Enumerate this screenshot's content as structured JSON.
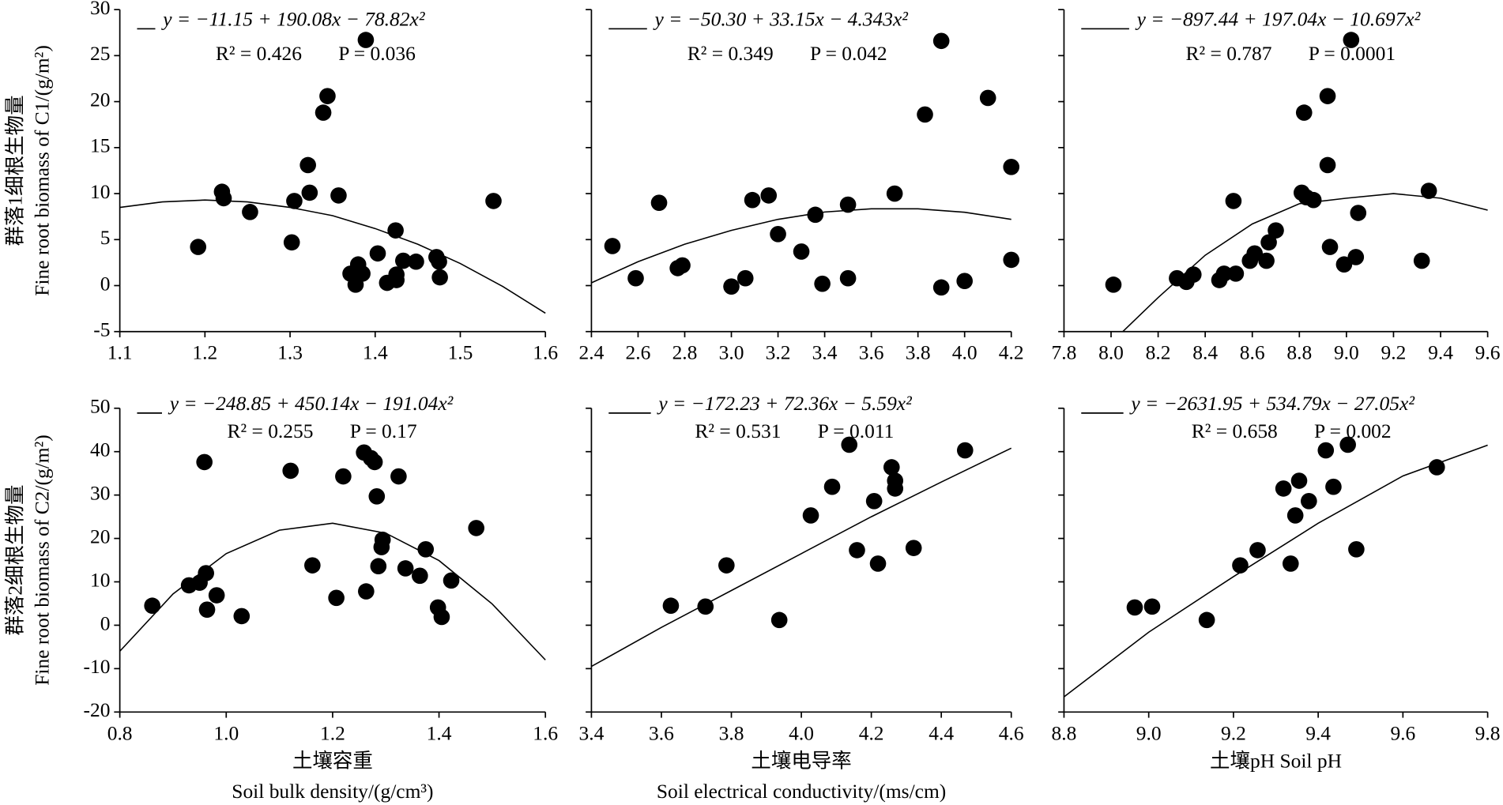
{
  "chart_data": [
    {
      "type": "scatter",
      "equation": "y = −11.15 + 190.08x − 78.82x²",
      "r2": "R² = 0.426",
      "p": "P = 0.036",
      "ylabel": [
        "群落1细根生物量",
        "Fine root biomass of C1/(g/m²)"
      ],
      "xlim": [
        1.1,
        1.6
      ],
      "xticks": [
        1.1,
        1.2,
        1.3,
        1.4,
        1.5,
        1.6
      ],
      "ylim": [
        -5,
        30
      ],
      "yticks": [
        -5,
        0,
        5,
        10,
        15,
        20,
        25,
        30
      ],
      "x": [
        1.192,
        1.22,
        1.222,
        1.253,
        1.302,
        1.305,
        1.321,
        1.323,
        1.339,
        1.344,
        1.357,
        1.371,
        1.377,
        1.38,
        1.385,
        1.389,
        1.403,
        1.414,
        1.424,
        1.425,
        1.425,
        1.433,
        1.448,
        1.472,
        1.475,
        1.476,
        1.539
      ],
      "values": [
        4.2,
        10.2,
        9.5,
        8.0,
        4.7,
        9.2,
        13.1,
        10.1,
        18.8,
        20.6,
        9.8,
        1.3,
        0.1,
        2.3,
        1.3,
        26.7,
        3.5,
        0.3,
        6.0,
        1.2,
        0.6,
        2.7,
        2.6,
        3.1,
        2.6,
        0.9,
        9.2
      ],
      "fit_x": [
        1.1,
        1.15,
        1.2,
        1.25,
        1.3,
        1.35,
        1.4,
        1.45,
        1.5,
        1.55,
        1.6
      ],
      "fit_values": [
        8.5,
        9.1,
        9.3,
        9.1,
        8.5,
        7.6,
        6.2,
        4.5,
        2.4,
        -0.1,
        -3.0
      ]
    },
    {
      "type": "scatter",
      "equation": "y = −50.30 + 33.15x − 4.343x²",
      "r2": "R² = 0.349",
      "p": "P = 0.042",
      "xlim": [
        2.4,
        4.2
      ],
      "xticks": [
        2.4,
        2.6,
        2.8,
        {
          "value": 3,
          "label": "3.0"
        },
        3.2,
        3.4,
        3.6,
        3.8,
        {
          "value": 4,
          "label": "4.0"
        },
        4.2
      ],
      "ylim": [
        -5,
        30
      ],
      "yticks": [
        -5,
        0,
        5,
        10,
        15,
        20,
        25,
        30
      ],
      "x": [
        2.49,
        2.59,
        2.69,
        2.77,
        2.79,
        3.0,
        3.06,
        3.09,
        3.16,
        3.2,
        3.3,
        3.36,
        3.39,
        3.5,
        3.5,
        3.7,
        3.83,
        3.9,
        3.9,
        4.0,
        4.1,
        4.2,
        4.2
      ],
      "values": [
        4.3,
        0.8,
        9.0,
        1.9,
        2.2,
        -0.1,
        0.8,
        9.3,
        9.8,
        5.6,
        3.7,
        7.7,
        0.2,
        0.8,
        8.8,
        10.0,
        18.6,
        26.6,
        -0.2,
        0.5,
        20.4,
        12.9,
        2.8
      ],
      "fit_x": [
        2.4,
        2.6,
        2.8,
        3.0,
        3.2,
        3.4,
        3.6,
        3.8,
        4.0,
        4.2
      ],
      "fit_values": [
        0.3,
        2.6,
        4.5,
        6.0,
        7.2,
        8.0,
        8.35,
        8.35,
        7.97,
        7.2
      ]
    },
    {
      "type": "scatter",
      "equation": "y = −897.44 + 197.04x −  10.697x²",
      "r2": "R² = 0.787",
      "p": "P = 0.0001",
      "xlim": [
        7.8,
        9.6
      ],
      "xticks": [
        7.8,
        {
          "value": 8,
          "label": "8.0"
        },
        8.2,
        8.4,
        8.6,
        8.8,
        {
          "value": 9,
          "label": "9.0"
        },
        9.2,
        9.4,
        9.6
      ],
      "ylim": [
        -5,
        30
      ],
      "yticks": [
        -5,
        0,
        5,
        10,
        15,
        20,
        25,
        30
      ],
      "x": [
        8.01,
        8.28,
        8.32,
        8.35,
        8.46,
        8.48,
        8.52,
        8.53,
        8.59,
        8.61,
        8.66,
        8.67,
        8.7,
        8.81,
        8.82,
        8.83,
        8.86,
        8.92,
        8.92,
        8.93,
        8.99,
        9.02,
        9.04,
        9.05,
        9.32,
        9.35
      ],
      "values": [
        0.1,
        0.8,
        0.4,
        1.2,
        0.6,
        1.3,
        9.2,
        1.3,
        2.7,
        3.5,
        2.7,
        4.7,
        6.0,
        10.1,
        18.8,
        9.6,
        9.3,
        20.6,
        13.1,
        4.2,
        2.3,
        26.7,
        3.1,
        7.9,
        2.7,
        10.3
      ],
      "fit_x": [
        8.05,
        8.2,
        8.4,
        8.6,
        8.8,
        9.0,
        9.2,
        9.4,
        9.6
      ],
      "fit_values": [
        -5.0,
        -1.3,
        3.3,
        6.7,
        8.9,
        9.5,
        10.0,
        9.5,
        8.2
      ]
    },
    {
      "type": "scatter",
      "equation": "y = −248.85 + 450.14x − 191.04x²",
      "r2": "R² = 0.255",
      "p": "P = 0.17",
      "ylabel": [
        "群落2细根生物量",
        "Fine root biomass of C2/(g/m²)"
      ],
      "xlabel": [
        "土壤容重",
        "Soil bulk density/(g/cm³)"
      ],
      "xlim": [
        0.8,
        1.6
      ],
      "xticks": [
        0.8,
        {
          "value": 1,
          "label": "1.0"
        },
        1.2,
        1.4,
        1.6
      ],
      "ylim": [
        -20,
        50
      ],
      "yticks": [
        -20,
        -10,
        0,
        10,
        20,
        30,
        40,
        50
      ],
      "x": [
        0.861,
        0.93,
        0.95,
        0.959,
        0.962,
        0.964,
        0.982,
        1.029,
        1.121,
        1.162,
        1.207,
        1.22,
        1.259,
        1.263,
        1.272,
        1.279,
        1.283,
        1.286,
        1.292,
        1.294,
        1.324,
        1.337,
        1.364,
        1.375,
        1.398,
        1.405,
        1.423,
        1.47
      ],
      "values": [
        4.5,
        9.2,
        9.8,
        37.6,
        12.0,
        3.6,
        6.9,
        2.1,
        35.6,
        13.8,
        6.3,
        34.3,
        39.8,
        7.8,
        38.5,
        37.6,
        29.7,
        13.6,
        18.0,
        19.7,
        34.3,
        13.1,
        11.4,
        17.5,
        4.1,
        1.9,
        10.3,
        22.4
      ],
      "fit_x": [
        0.8,
        0.9,
        1.0,
        1.1,
        1.2,
        1.3,
        1.4,
        1.5,
        1.6
      ],
      "fit_values": [
        -6.0,
        7.2,
        16.5,
        21.9,
        23.5,
        21.2,
        14.9,
        4.9,
        -8.0
      ]
    },
    {
      "type": "scatter",
      "equation": "y = −172.23 + 72.36x − 5.59x²",
      "r2": "R² = 0.531",
      "p": "P = 0.011",
      "xlabel": [
        "土壤电导率",
        "Soil electrical conductivity/(ms/cm)"
      ],
      "xlim": [
        3.4,
        4.6
      ],
      "xticks": [
        3.4,
        3.6,
        3.8,
        {
          "value": 4,
          "label": "4.0"
        },
        4.2,
        4.4,
        4.6
      ],
      "ylim": [
        -20,
        50
      ],
      "yticks": [
        -20,
        -10,
        0,
        10,
        20,
        30,
        40,
        50
      ],
      "x": [
        3.627,
        3.726,
        3.786,
        3.937,
        4.027,
        4.088,
        4.137,
        4.159,
        4.208,
        4.219,
        4.258,
        4.268,
        4.268,
        4.321,
        4.468
      ],
      "values": [
        4.5,
        4.3,
        13.8,
        1.2,
        25.3,
        31.9,
        41.6,
        17.3,
        28.6,
        14.2,
        36.4,
        33.3,
        31.5,
        17.8,
        40.3
      ],
      "fit_x": [
        3.4,
        3.6,
        3.8,
        4.0,
        4.2,
        4.4,
        4.6
      ],
      "fit_values": [
        -9.5,
        -0.5,
        8.0,
        16.5,
        25.0,
        33.0,
        40.8
      ]
    },
    {
      "type": "scatter",
      "equation": "y = −2631.95 + 534.79x −  27.05x²",
      "r2": "R² = 0.658",
      "p": "P = 0.002",
      "xlabel": [
        "土壤pH  Soil pH"
      ],
      "xlim": [
        8.8,
        9.8
      ],
      "xticks": [
        8.8,
        {
          "value": 9,
          "label": "9.0"
        },
        9.2,
        9.4,
        9.6,
        9.8
      ],
      "ylim": [
        -20,
        50
      ],
      "yticks": [
        -20,
        -10,
        0,
        10,
        20,
        30,
        40,
        50
      ],
      "x": [
        8.967,
        9.008,
        9.137,
        9.216,
        9.257,
        9.318,
        9.335,
        9.346,
        9.355,
        9.378,
        9.418,
        9.436,
        9.47,
        9.49,
        9.68
      ],
      "values": [
        4.1,
        4.3,
        1.2,
        13.8,
        17.3,
        31.5,
        14.2,
        25.3,
        33.3,
        28.6,
        40.3,
        31.9,
        41.6,
        17.5,
        36.4
      ],
      "fit_x": [
        8.8,
        9.0,
        9.2,
        9.4,
        9.6,
        9.8
      ],
      "fit_values": [
        -16.5,
        -1.6,
        11.2,
        23.5,
        34.4,
        41.5
      ]
    }
  ]
}
